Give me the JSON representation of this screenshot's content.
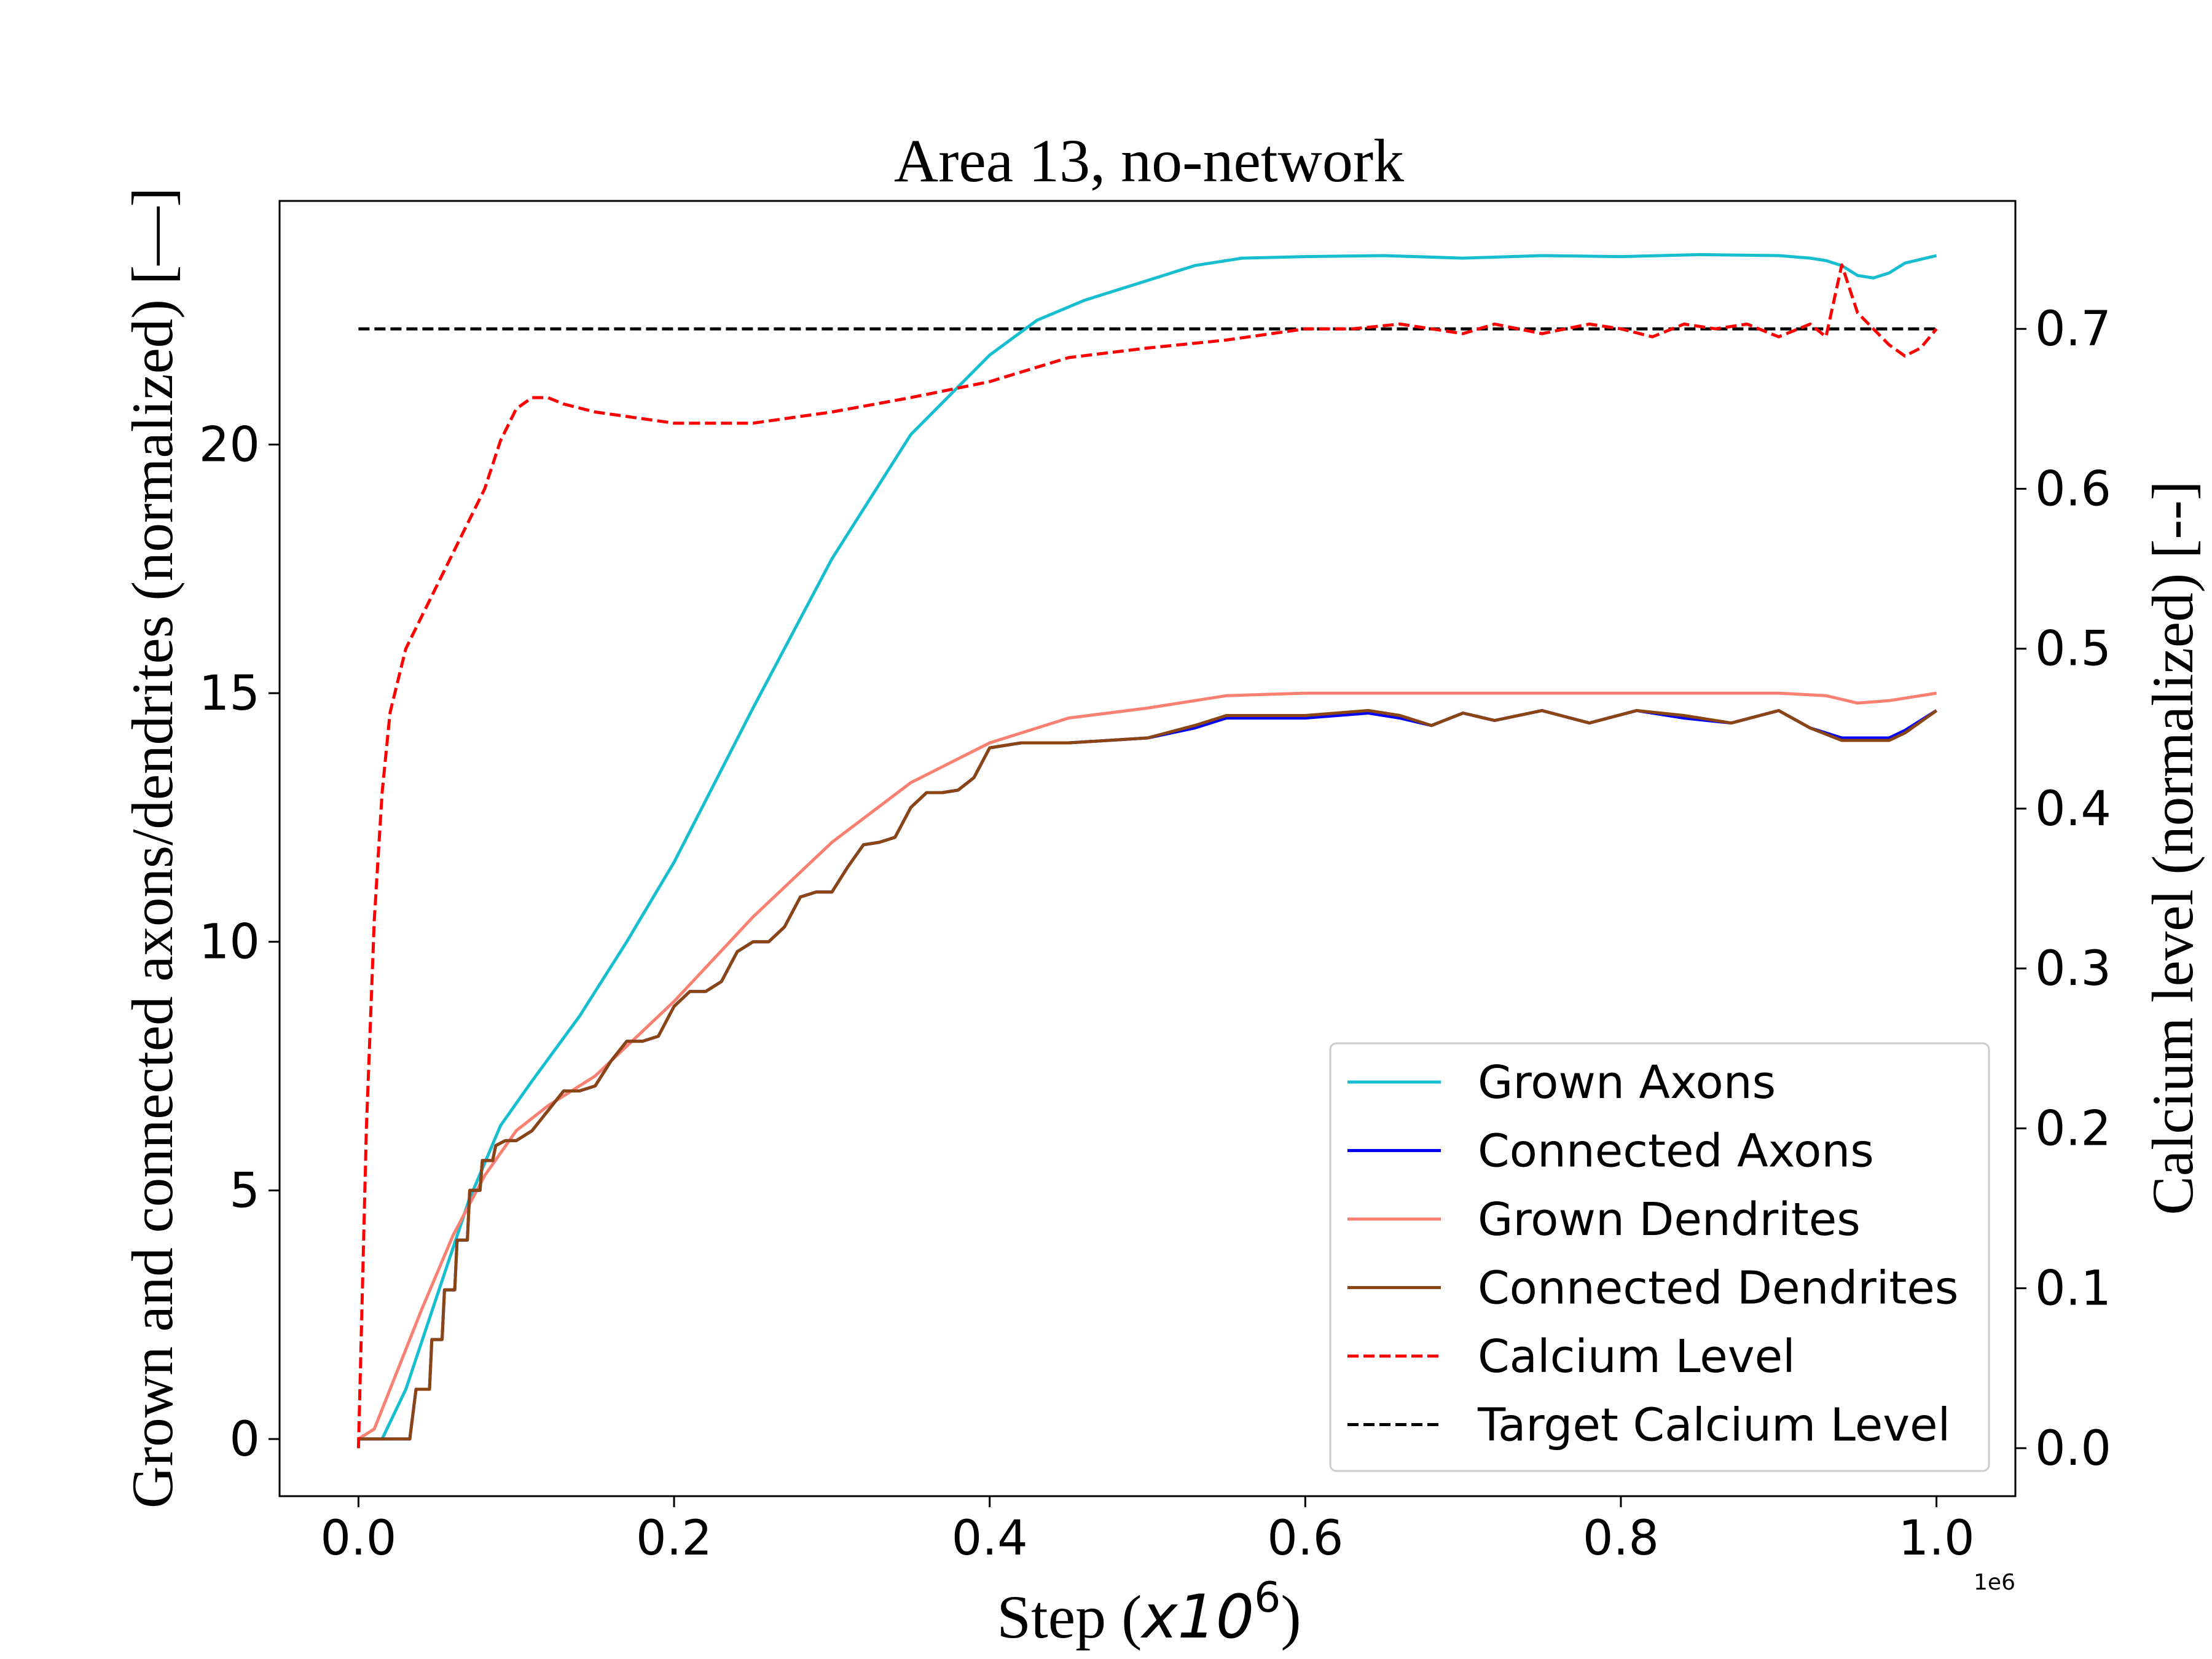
{
  "chart_data": {
    "type": "line",
    "title": "Area 13, no-network",
    "xlabel_text": "Step (",
    "xlabel_math": "x10",
    "xlabel_sup": "6",
    "xlabel_close": ")",
    "xaxis_offset": "1e6",
    "ylabel": "Grown and connected axons/dendrites (normalized) [—]",
    "y2label": "Calcium level (normalized) [--]",
    "xlim": [
      -0.05,
      1.05
    ],
    "ylim": [
      -1.15,
      24.9
    ],
    "y2lim": [
      -0.03,
      0.78
    ],
    "xticks": [
      0.0,
      0.2,
      0.4,
      0.6,
      0.8,
      1.0
    ],
    "xtick_labels": [
      "0.0",
      "0.2",
      "0.4",
      "0.6",
      "0.8",
      "1.0"
    ],
    "yticks": [
      0,
      5,
      10,
      15,
      20
    ],
    "ytick_labels": [
      "0",
      "5",
      "10",
      "15",
      "20"
    ],
    "y2ticks": [
      0.0,
      0.1,
      0.2,
      0.3,
      0.4,
      0.5,
      0.6,
      0.7
    ],
    "y2tick_labels": [
      "0.0",
      "0.1",
      "0.2",
      "0.3",
      "0.4",
      "0.5",
      "0.6",
      "0.7"
    ],
    "legend_position": "lower-right",
    "grid": false,
    "series": [
      {
        "name": "Grown Axons",
        "color": "#17becf",
        "dash": "solid",
        "axis": "left",
        "x": [
          0.0,
          0.015,
          0.03,
          0.05,
          0.07,
          0.09,
          0.11,
          0.14,
          0.17,
          0.2,
          0.25,
          0.3,
          0.35,
          0.4,
          0.43,
          0.46,
          0.5,
          0.53,
          0.56,
          0.6,
          0.65,
          0.7,
          0.75,
          0.8,
          0.85,
          0.9,
          0.92,
          0.93,
          0.94,
          0.95,
          0.96,
          0.97,
          0.98,
          1.0
        ],
        "y": [
          0.0,
          0.0,
          1.0,
          2.9,
          4.8,
          6.3,
          7.2,
          8.5,
          10.0,
          11.6,
          14.7,
          17.7,
          20.2,
          21.8,
          22.5,
          22.9,
          23.3,
          23.6,
          23.75,
          23.78,
          23.8,
          23.75,
          23.8,
          23.78,
          23.82,
          23.8,
          23.75,
          23.7,
          23.6,
          23.4,
          23.35,
          23.45,
          23.65,
          23.8
        ]
      },
      {
        "name": "Connected Axons",
        "color": "#0000ff",
        "dash": "solid",
        "axis": "left",
        "x": [
          0.0,
          0.0325,
          0.0365,
          0.045,
          0.0465,
          0.053,
          0.0545,
          0.061,
          0.0625,
          0.069,
          0.0705,
          0.077,
          0.0785,
          0.085,
          0.087,
          0.093,
          0.1,
          0.11,
          0.12,
          0.13,
          0.14,
          0.15,
          0.16,
          0.17,
          0.18,
          0.19,
          0.2,
          0.21,
          0.22,
          0.23,
          0.24,
          0.25,
          0.26,
          0.27,
          0.28,
          0.29,
          0.3,
          0.31,
          0.32,
          0.33,
          0.34,
          0.35,
          0.36,
          0.37,
          0.38,
          0.39,
          0.4,
          0.42,
          0.45,
          0.5,
          0.53,
          0.55,
          0.6,
          0.64,
          0.66,
          0.68,
          0.7,
          0.72,
          0.75,
          0.78,
          0.81,
          0.84,
          0.87,
          0.9,
          0.92,
          0.94,
          0.97,
          0.98,
          1.0
        ],
        "y": [
          0.0,
          0.0,
          1.0,
          1.0,
          2.0,
          2.0,
          3.0,
          3.0,
          4.0,
          4.0,
          5.0,
          5.0,
          5.6,
          5.6,
          5.9,
          6.0,
          6.0,
          6.2,
          6.6,
          7.0,
          7.0,
          7.1,
          7.6,
          8.0,
          8.0,
          8.1,
          8.7,
          9.0,
          9.0,
          9.2,
          9.8,
          10.0,
          10.0,
          10.3,
          10.9,
          11.0,
          11.0,
          11.5,
          11.95,
          12.0,
          12.1,
          12.7,
          13.0,
          13.0,
          13.05,
          13.3,
          13.9,
          14.0,
          14.0,
          14.1,
          14.3,
          14.5,
          14.5,
          14.6,
          14.5,
          14.35,
          14.6,
          14.45,
          14.65,
          14.4,
          14.65,
          14.5,
          14.4,
          14.65,
          14.3,
          14.1,
          14.1,
          14.25,
          14.65
        ]
      },
      {
        "name": "Grown Dendrites",
        "color": "#fa8072",
        "dash": "solid",
        "axis": "left",
        "x": [
          0.0,
          0.01,
          0.02,
          0.04,
          0.06,
          0.08,
          0.1,
          0.12,
          0.15,
          0.2,
          0.25,
          0.3,
          0.35,
          0.4,
          0.45,
          0.5,
          0.55,
          0.6,
          0.65,
          0.7,
          0.75,
          0.8,
          0.85,
          0.9,
          0.93,
          0.95,
          0.97,
          1.0
        ],
        "y": [
          0.0,
          0.2,
          1.0,
          2.6,
          4.1,
          5.3,
          6.2,
          6.7,
          7.3,
          8.8,
          10.5,
          12.0,
          13.2,
          14.0,
          14.5,
          14.7,
          14.95,
          15.0,
          15.0,
          15.0,
          15.0,
          15.0,
          15.0,
          15.0,
          14.95,
          14.8,
          14.85,
          15.0
        ]
      },
      {
        "name": "Connected Dendrites",
        "color": "#8b4513",
        "dash": "solid",
        "axis": "left",
        "x": [
          0.0,
          0.0325,
          0.0365,
          0.045,
          0.0465,
          0.053,
          0.0545,
          0.061,
          0.0625,
          0.069,
          0.0705,
          0.077,
          0.0785,
          0.085,
          0.087,
          0.093,
          0.1,
          0.11,
          0.12,
          0.13,
          0.14,
          0.15,
          0.16,
          0.17,
          0.18,
          0.19,
          0.2,
          0.21,
          0.22,
          0.23,
          0.24,
          0.25,
          0.26,
          0.27,
          0.28,
          0.29,
          0.3,
          0.31,
          0.32,
          0.33,
          0.34,
          0.35,
          0.36,
          0.37,
          0.38,
          0.39,
          0.4,
          0.42,
          0.45,
          0.5,
          0.53,
          0.55,
          0.6,
          0.64,
          0.66,
          0.68,
          0.7,
          0.72,
          0.75,
          0.78,
          0.81,
          0.84,
          0.87,
          0.9,
          0.92,
          0.94,
          0.97,
          0.98,
          1.0
        ],
        "y": [
          0.0,
          0.0,
          1.0,
          1.0,
          2.0,
          2.0,
          3.0,
          3.0,
          4.0,
          4.0,
          5.0,
          5.0,
          5.6,
          5.6,
          5.9,
          6.0,
          6.0,
          6.2,
          6.6,
          7.0,
          7.0,
          7.1,
          7.6,
          8.0,
          8.0,
          8.1,
          8.7,
          9.0,
          9.0,
          9.2,
          9.8,
          10.0,
          10.0,
          10.3,
          10.9,
          11.0,
          11.0,
          11.5,
          11.95,
          12.0,
          12.1,
          12.7,
          13.0,
          13.0,
          13.05,
          13.3,
          13.9,
          14.0,
          14.0,
          14.1,
          14.35,
          14.55,
          14.55,
          14.65,
          14.55,
          14.35,
          14.6,
          14.45,
          14.65,
          14.4,
          14.65,
          14.55,
          14.4,
          14.65,
          14.3,
          14.05,
          14.05,
          14.2,
          14.65
        ]
      },
      {
        "name": "Calcium Level",
        "color": "#ff0000",
        "dash": "dashed",
        "axis": "right",
        "x": [
          0.0,
          0.005,
          0.01,
          0.015,
          0.02,
          0.025,
          0.03,
          0.04,
          0.05,
          0.06,
          0.07,
          0.08,
          0.09,
          0.1,
          0.11,
          0.12,
          0.13,
          0.15,
          0.2,
          0.25,
          0.3,
          0.35,
          0.4,
          0.45,
          0.5,
          0.55,
          0.6,
          0.63,
          0.66,
          0.68,
          0.7,
          0.72,
          0.75,
          0.78,
          0.8,
          0.82,
          0.84,
          0.86,
          0.88,
          0.9,
          0.92,
          0.93,
          0.94,
          0.95,
          0.96,
          0.97,
          0.98,
          0.99,
          1.0
        ],
        "y": [
          0.0,
          0.2,
          0.33,
          0.41,
          0.46,
          0.48,
          0.5,
          0.52,
          0.54,
          0.56,
          0.58,
          0.6,
          0.63,
          0.65,
          0.657,
          0.657,
          0.653,
          0.648,
          0.641,
          0.641,
          0.648,
          0.657,
          0.667,
          0.682,
          0.688,
          0.693,
          0.7,
          0.7,
          0.703,
          0.7,
          0.697,
          0.703,
          0.697,
          0.703,
          0.7,
          0.695,
          0.703,
          0.7,
          0.703,
          0.695,
          0.703,
          0.695,
          0.74,
          0.71,
          0.7,
          0.69,
          0.683,
          0.688,
          0.7
        ]
      },
      {
        "name": "Target Calcium Level",
        "color": "#000000",
        "dash": "dashed",
        "axis": "right",
        "x": [
          0.0,
          1.0
        ],
        "y": [
          0.7,
          0.7
        ]
      }
    ]
  }
}
